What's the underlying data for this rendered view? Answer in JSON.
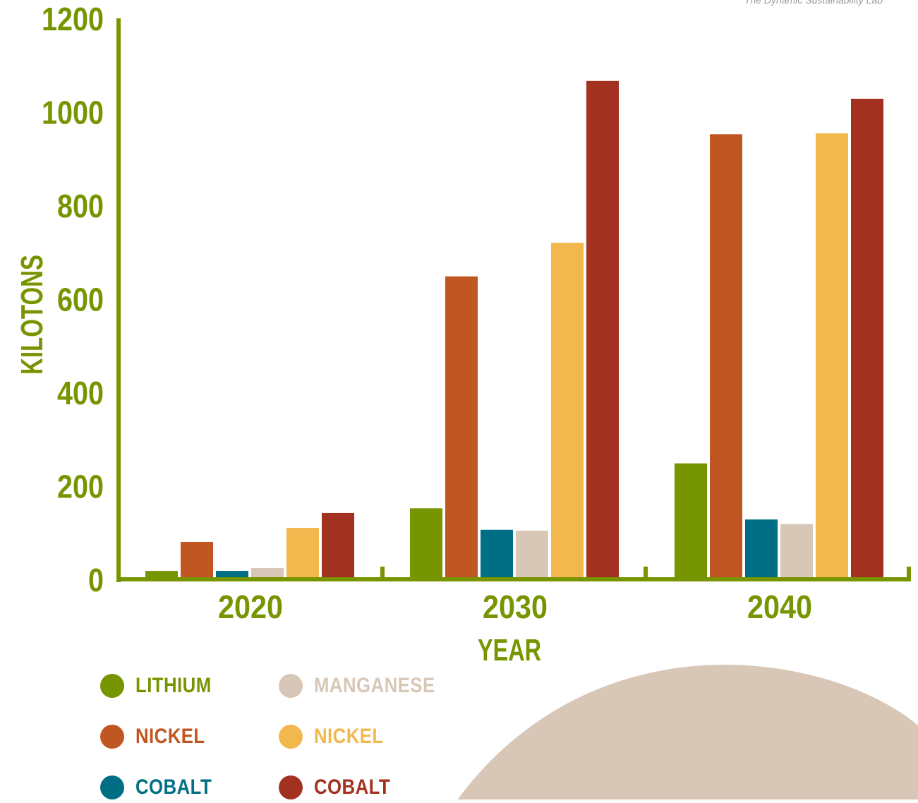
{
  "credit": "The Dynamic Sustainability Lab",
  "colors": {
    "axis": "#779500",
    "background_shape": "#d8c7b6",
    "series": [
      "#779500",
      "#c05621",
      "#006f85",
      "#d8c7b6",
      "#f3b84d",
      "#a3311f"
    ]
  },
  "chart_data": {
    "type": "bar",
    "title": "",
    "xlabel": "YEAR",
    "ylabel": "KILOTONS",
    "ylim": [
      0,
      1200
    ],
    "yticks": [
      "0",
      "200",
      "400",
      "600",
      "800",
      "1000",
      "1200"
    ],
    "categories": [
      "2020",
      "2030",
      "2040"
    ],
    "grid": false,
    "legend_position": "bottom-left",
    "series": [
      {
        "name": "LITHIUM",
        "color": "#779500",
        "values": [
          18,
          152,
          248
        ]
      },
      {
        "name": "NICKEL",
        "color": "#c05621",
        "values": [
          80,
          648,
          952
        ]
      },
      {
        "name": "COBALT",
        "color": "#006f85",
        "values": [
          18,
          106,
          128
        ]
      },
      {
        "name": "MANGANESE",
        "color": "#d8c7b6",
        "values": [
          24,
          104,
          118
        ]
      },
      {
        "name": "NICKEL",
        "color": "#f3b84d",
        "values": [
          110,
          720,
          954
        ]
      },
      {
        "name": "COBALT",
        "color": "#a3311f",
        "values": [
          142,
          1066,
          1028
        ]
      }
    ]
  }
}
